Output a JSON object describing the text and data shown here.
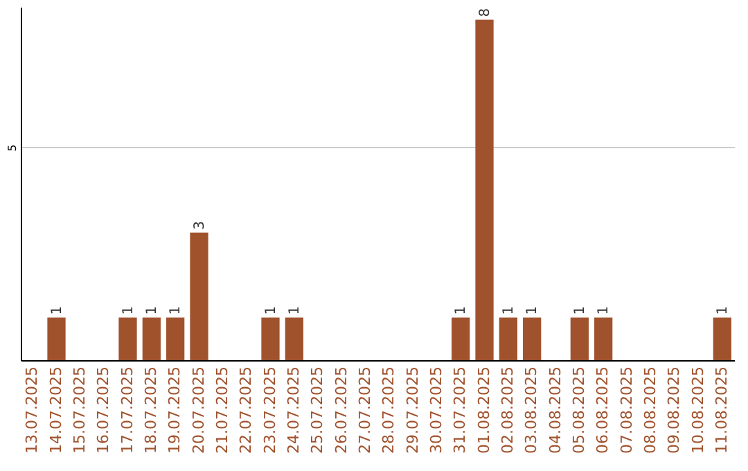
{
  "chart_data": {
    "type": "bar",
    "categories": [
      "13.07.2025",
      "14.07.2025",
      "15.07.2025",
      "16.07.2025",
      "17.07.2025",
      "18.07.2025",
      "19.07.2025",
      "20.07.2025",
      "21.07.2025",
      "22.07.2025",
      "23.07.2025",
      "24.07.2025",
      "25.07.2025",
      "26.07.2025",
      "27.07.2025",
      "28.07.2025",
      "29.07.2025",
      "30.07.2025",
      "31.07.2025",
      "01.08.2025",
      "02.08.2025",
      "03.08.2025",
      "04.08.2025",
      "05.08.2025",
      "06.08.2025",
      "07.08.2025",
      "08.08.2025",
      "09.08.2025",
      "10.08.2025",
      "11.08.2025"
    ],
    "values": [
      0,
      1,
      0,
      0,
      1,
      1,
      1,
      3,
      0,
      0,
      1,
      1,
      0,
      0,
      0,
      0,
      0,
      0,
      1,
      8,
      1,
      1,
      0,
      1,
      1,
      0,
      0,
      0,
      0,
      1
    ],
    "value_labels": [
      null,
      "1",
      null,
      null,
      "1",
      "1",
      "1",
      "3",
      null,
      null,
      "1",
      "1",
      null,
      null,
      null,
      null,
      null,
      null,
      "1",
      "8",
      "1",
      "1",
      null,
      "1",
      "1",
      null,
      null,
      null,
      null,
      "1"
    ],
    "color": "#a0522d",
    "ylim": [
      0,
      8.3
    ],
    "yticks": [
      5
    ],
    "grid": "y"
  }
}
